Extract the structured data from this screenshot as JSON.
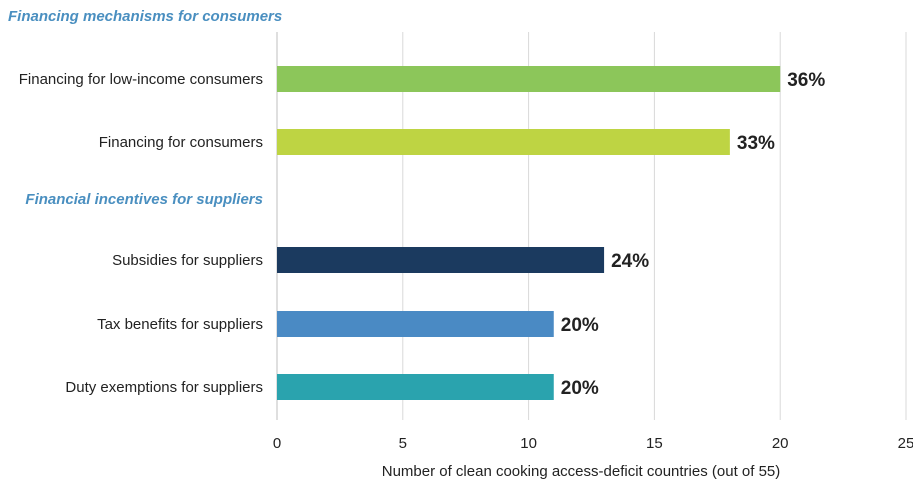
{
  "chart_data": {
    "type": "bar",
    "orientation": "horizontal",
    "groups": [
      {
        "title": "Financing mechanisms for consumers",
        "items": [
          {
            "category": "Financing for low-income consumers",
            "value": 20,
            "label": "36%",
            "color": "#8cc65a"
          },
          {
            "category": "Financing for consumers",
            "value": 18,
            "label": "33%",
            "color": "#bed443"
          }
        ]
      },
      {
        "title": "Financial incentives for suppliers",
        "items": [
          {
            "category": "Subsidies for suppliers",
            "value": 13,
            "label": "24%",
            "color": "#1b3a5f"
          },
          {
            "category": "Tax benefits for suppliers",
            "value": 11,
            "label": "20%",
            "color": "#4a8ac4"
          },
          {
            "category": "Duty exemptions for suppliers",
            "value": 11,
            "label": "20%",
            "color": "#2aa3ae"
          }
        ]
      }
    ],
    "xlim": [
      0,
      25
    ],
    "xticks": [
      "0",
      "5",
      "10",
      "15",
      "20",
      "25"
    ],
    "xlabel": "Number of clean cooking access-deficit countries (out of 55)",
    "grid": true
  }
}
